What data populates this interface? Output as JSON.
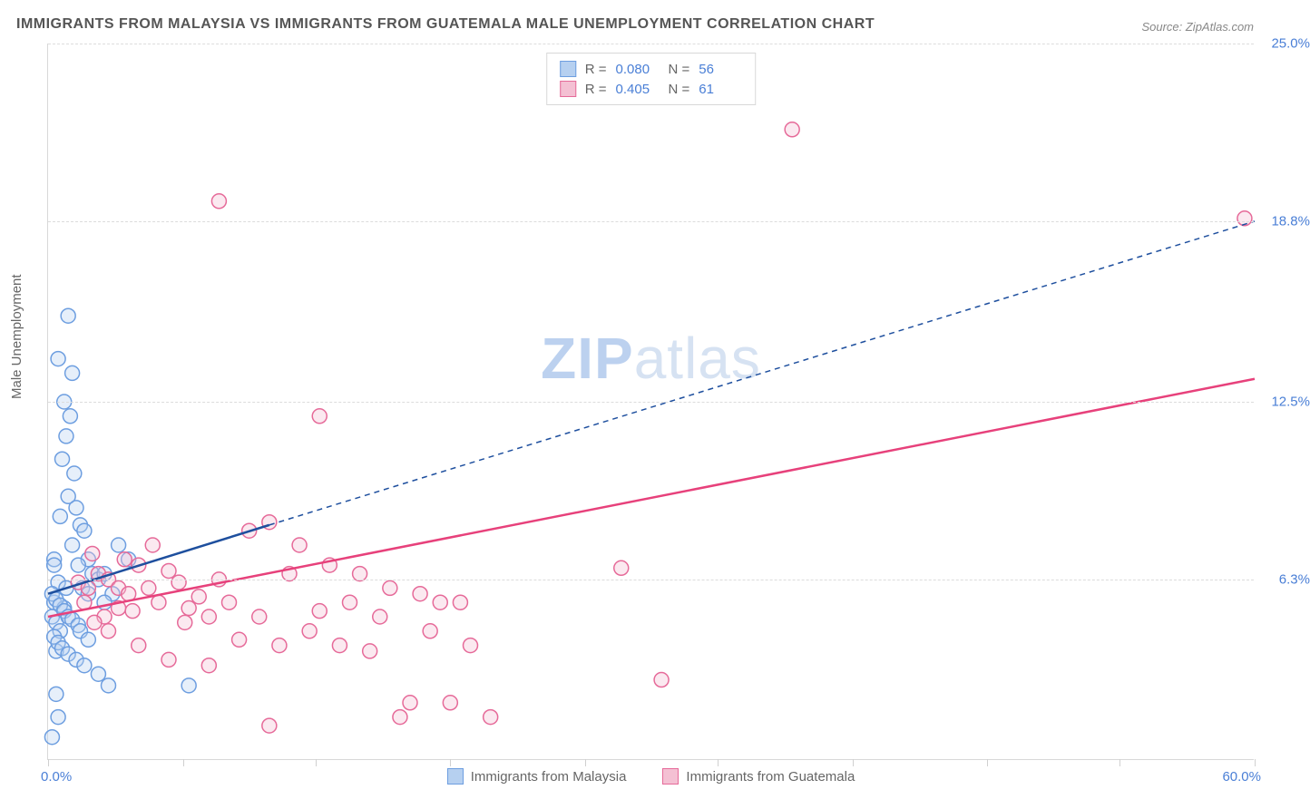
{
  "title": "IMMIGRANTS FROM MALAYSIA VS IMMIGRANTS FROM GUATEMALA MALE UNEMPLOYMENT CORRELATION CHART",
  "source": "Source: ZipAtlas.com",
  "ylabel": "Male Unemployment",
  "watermark": {
    "zip": "ZIP",
    "atlas": "atlas"
  },
  "chart": {
    "type": "scatter",
    "background_color": "#ffffff",
    "grid_color": "#dcdcdc",
    "axis_label_color": "#666666",
    "tick_label_color": "#4a7fd6",
    "xlim": [
      0,
      60
    ],
    "ylim": [
      0,
      25
    ],
    "xticks_minor": [
      0,
      6.7,
      13.3,
      20,
      26.7,
      33.3,
      40,
      46.7,
      53.3,
      60
    ],
    "yticks": [
      {
        "v": 25.0,
        "label": "25.0%"
      },
      {
        "v": 18.8,
        "label": "18.8%"
      },
      {
        "v": 12.5,
        "label": "12.5%"
      },
      {
        "v": 6.3,
        "label": "6.3%"
      }
    ],
    "xmin_label": "0.0%",
    "xmax_label": "60.0%",
    "marker_radius": 8,
    "series": [
      {
        "name": "Immigrants from Malaysia",
        "color_stroke": "#6d9ee0",
        "color_fill": "#b6d0f0",
        "r_stat": "0.080",
        "n_stat": "56",
        "trend": {
          "x1": 0,
          "y1": 5.8,
          "x2": 11,
          "y2": 8.2,
          "stroke": "#1e4f9e",
          "width": 2.5,
          "dash": "none"
        },
        "trend_ext": {
          "x1": 11,
          "y1": 8.2,
          "x2": 60,
          "y2": 18.8,
          "stroke": "#1e4f9e",
          "width": 1.5,
          "dash": "6,5"
        },
        "points": [
          [
            0.2,
            5.0
          ],
          [
            0.3,
            5.5
          ],
          [
            0.4,
            4.8
          ],
          [
            0.5,
            6.2
          ],
          [
            0.3,
            7.0
          ],
          [
            0.8,
            5.3
          ],
          [
            0.6,
            4.5
          ],
          [
            0.4,
            3.8
          ],
          [
            1.0,
            15.5
          ],
          [
            0.5,
            14.0
          ],
          [
            1.2,
            13.5
          ],
          [
            0.8,
            12.5
          ],
          [
            1.1,
            12.0
          ],
          [
            0.9,
            11.3
          ],
          [
            0.7,
            10.5
          ],
          [
            1.3,
            10.0
          ],
          [
            1.0,
            9.2
          ],
          [
            1.4,
            8.8
          ],
          [
            0.6,
            8.5
          ],
          [
            1.6,
            8.2
          ],
          [
            1.8,
            8.0
          ],
          [
            1.2,
            7.5
          ],
          [
            2.0,
            7.0
          ],
          [
            1.5,
            6.8
          ],
          [
            2.2,
            6.5
          ],
          [
            2.5,
            6.3
          ],
          [
            2.8,
            6.5
          ],
          [
            1.7,
            6.0
          ],
          [
            2.0,
            5.8
          ],
          [
            0.2,
            5.8
          ],
          [
            0.4,
            5.6
          ],
          [
            0.6,
            5.4
          ],
          [
            0.8,
            5.2
          ],
          [
            1.0,
            5.0
          ],
          [
            1.2,
            4.9
          ],
          [
            1.5,
            4.7
          ],
          [
            0.3,
            4.3
          ],
          [
            0.5,
            4.1
          ],
          [
            0.7,
            3.9
          ],
          [
            1.0,
            3.7
          ],
          [
            1.4,
            3.5
          ],
          [
            1.8,
            3.3
          ],
          [
            2.5,
            3.0
          ],
          [
            3.0,
            2.6
          ],
          [
            0.4,
            2.3
          ],
          [
            7.0,
            2.6
          ],
          [
            3.5,
            7.5
          ],
          [
            4.0,
            7.0
          ],
          [
            3.2,
            5.8
          ],
          [
            2.8,
            5.5
          ],
          [
            1.6,
            4.5
          ],
          [
            2.0,
            4.2
          ],
          [
            0.2,
            0.8
          ],
          [
            0.3,
            6.8
          ],
          [
            0.5,
            1.5
          ],
          [
            0.9,
            6.0
          ]
        ]
      },
      {
        "name": "Immigrants from Guatemala",
        "color_stroke": "#e66a99",
        "color_fill": "#f4c0d3",
        "r_stat": "0.405",
        "n_stat": "61",
        "trend": {
          "x1": 0,
          "y1": 5.0,
          "x2": 60,
          "y2": 13.3,
          "stroke": "#e7417b",
          "width": 2.5,
          "dash": "none"
        },
        "trend_ext": null,
        "points": [
          [
            8.5,
            19.5
          ],
          [
            37.0,
            22.0
          ],
          [
            59.5,
            18.9
          ],
          [
            28.5,
            6.7
          ],
          [
            30.5,
            2.8
          ],
          [
            1.5,
            6.2
          ],
          [
            2.0,
            6.0
          ],
          [
            2.5,
            6.5
          ],
          [
            3.0,
            6.3
          ],
          [
            3.5,
            6.0
          ],
          [
            4.0,
            5.8
          ],
          [
            4.5,
            6.8
          ],
          [
            5.0,
            6.0
          ],
          [
            5.5,
            5.5
          ],
          [
            6.0,
            6.6
          ],
          [
            6.5,
            6.2
          ],
          [
            7.0,
            5.3
          ],
          [
            7.5,
            5.7
          ],
          [
            8.0,
            5.0
          ],
          [
            8.5,
            6.3
          ],
          [
            9.0,
            5.5
          ],
          [
            9.5,
            4.2
          ],
          [
            10.0,
            8.0
          ],
          [
            10.5,
            5.0
          ],
          [
            11.0,
            8.3
          ],
          [
            11.5,
            4.0
          ],
          [
            12.0,
            6.5
          ],
          [
            12.5,
            7.5
          ],
          [
            13.0,
            4.5
          ],
          [
            13.5,
            5.2
          ],
          [
            14.0,
            6.8
          ],
          [
            14.5,
            4.0
          ],
          [
            15.0,
            5.5
          ],
          [
            13.5,
            12.0
          ],
          [
            15.5,
            6.5
          ],
          [
            16.0,
            3.8
          ],
          [
            16.5,
            5.0
          ],
          [
            17.0,
            6.0
          ],
          [
            18.0,
            2.0
          ],
          [
            18.5,
            5.8
          ],
          [
            19.0,
            4.5
          ],
          [
            19.5,
            5.5
          ],
          [
            20.0,
            2.0
          ],
          [
            20.5,
            5.5
          ],
          [
            21.0,
            4.0
          ],
          [
            22.0,
            1.5
          ],
          [
            11.0,
            1.2
          ],
          [
            17.5,
            1.5
          ],
          [
            3.0,
            4.5
          ],
          [
            4.5,
            4.0
          ],
          [
            6.0,
            3.5
          ],
          [
            8.0,
            3.3
          ],
          [
            2.2,
            7.2
          ],
          [
            3.8,
            7.0
          ],
          [
            5.2,
            7.5
          ],
          [
            2.8,
            5.0
          ],
          [
            4.2,
            5.2
          ],
          [
            6.8,
            4.8
          ],
          [
            1.8,
            5.5
          ],
          [
            2.3,
            4.8
          ],
          [
            3.5,
            5.3
          ]
        ]
      }
    ]
  },
  "top_legend": {
    "rows": [
      {
        "swatch_stroke": "#6d9ee0",
        "swatch_fill": "#b6d0f0",
        "r_label": "R =",
        "r_value": "0.080",
        "n_label": "N =",
        "n_value": "56"
      },
      {
        "swatch_stroke": "#e66a99",
        "swatch_fill": "#f4c0d3",
        "r_label": "R =",
        "r_value": "0.405",
        "n_label": "N =",
        "n_value": "61"
      }
    ]
  },
  "bottom_legend": {
    "items": [
      {
        "swatch_stroke": "#6d9ee0",
        "swatch_fill": "#b6d0f0",
        "label": "Immigrants from Malaysia"
      },
      {
        "swatch_stroke": "#e66a99",
        "swatch_fill": "#f4c0d3",
        "label": "Immigrants from Guatemala"
      }
    ]
  }
}
